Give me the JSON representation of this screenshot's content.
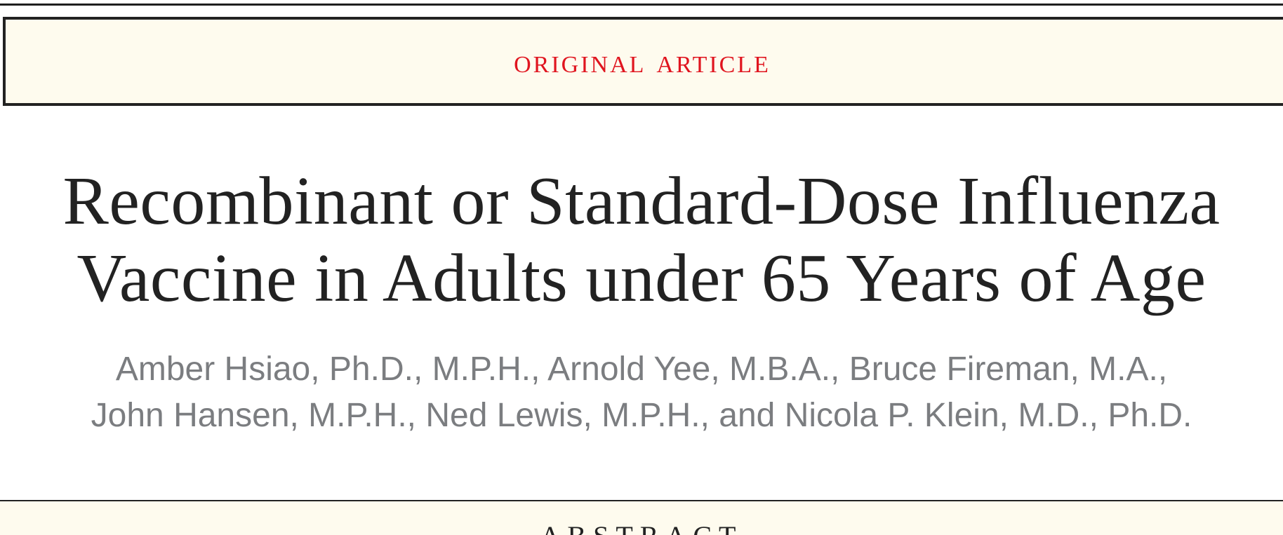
{
  "header": {
    "article_type": "ORIGINAL ARTICLE"
  },
  "article": {
    "title_lines": [
      "Recombinant or Standard-Dose Influenza",
      "Vaccine in Adults under 65 Years of Age"
    ],
    "author_lines": [
      "Amber Hsiao, Ph.D., M.P.H., Arnold Yee, M.B.A., Bruce Fireman, M.A.,",
      "John Hansen, M.P.H., Ned Lewis, M.P.H., and Nicola P. Klein, M.D., Ph.D."
    ]
  },
  "abstract": {
    "heading": "ABSTRACT"
  },
  "colors": {
    "accent_red": "#e0151f",
    "band_background": "#fefbee",
    "text_dark": "#222222",
    "author_gray": "#7b7d80"
  }
}
